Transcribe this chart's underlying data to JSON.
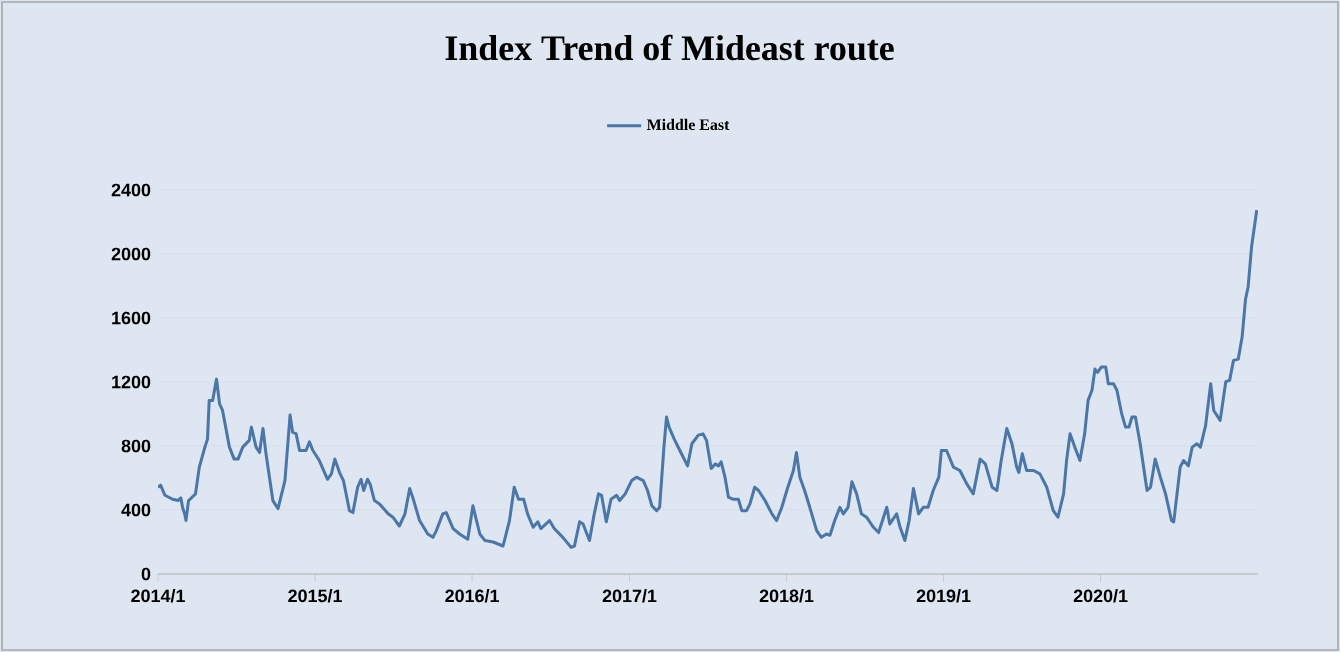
{
  "chart_data": {
    "type": "line",
    "title": "Index Trend of Mideast route",
    "xlim": [
      "2014-01-01",
      "2021-01-01"
    ],
    "xticks": [
      {
        "value": "2014-01-01",
        "label": "2014/1"
      },
      {
        "value": "2015-01-01",
        "label": "2015/1"
      },
      {
        "value": "2016-01-01",
        "label": "2016/1"
      },
      {
        "value": "2017-01-01",
        "label": "2017/1"
      },
      {
        "value": "2018-01-01",
        "label": "2018/1"
      },
      {
        "value": "2019-01-01",
        "label": "2019/1"
      },
      {
        "value": "2020-01-01",
        "label": "2020/1"
      }
    ],
    "ylim": [
      0,
      2400
    ],
    "yticks": [
      0,
      400,
      800,
      1200,
      1600,
      2000,
      2400
    ],
    "grid": "y",
    "legend": "top",
    "marker": "none",
    "line_style": "solid",
    "series": [
      {
        "name": "Middle East",
        "color": "#4a76a8",
        "x": [
          "2014-01-01",
          "2014-01-07",
          "2014-01-17",
          "2014-02-04",
          "2014-02-17",
          "2014-02-23",
          "2014-02-27",
          "2014-03-04",
          "2014-03-07",
          "2014-03-13",
          "2014-03-29",
          "2014-04-07",
          "2014-04-20",
          "2014-04-26",
          "2014-04-30",
          "2014-05-08",
          "2014-05-17",
          "2014-05-24",
          "2014-05-31",
          "2014-06-16",
          "2014-06-27",
          "2014-07-06",
          "2014-07-17",
          "2014-08-01",
          "2014-08-06",
          "2014-08-17",
          "2014-08-25",
          "2014-09-02",
          "2014-09-09",
          "2014-09-25",
          "2014-10-07",
          "2014-10-23",
          "2014-11-04",
          "2014-11-10",
          "2014-11-18",
          "2014-11-26",
          "2014-12-11",
          "2014-12-19",
          "2014-12-27",
          "2015-01-11",
          "2015-01-30",
          "2015-02-08",
          "2015-02-16",
          "2015-02-27",
          "2015-03-08",
          "2015-03-22",
          "2015-03-30",
          "2015-04-10",
          "2015-04-18",
          "2015-04-24",
          "2015-05-03",
          "2015-05-09",
          "2015-05-19",
          "2015-05-31",
          "2015-06-20",
          "2015-07-01",
          "2015-07-16",
          "2015-07-29",
          "2015-08-09",
          "2015-08-16",
          "2015-09-01",
          "2015-09-20",
          "2015-10-02",
          "2015-10-10",
          "2015-10-25",
          "2015-11-02",
          "2015-11-18",
          "2015-12-03",
          "2015-12-22",
          "2016-01-03",
          "2016-01-19",
          "2016-01-31",
          "2016-02-19",
          "2016-03-13",
          "2016-03-28",
          "2016-04-08",
          "2016-04-18",
          "2016-04-30",
          "2016-05-09",
          "2016-05-22",
          "2016-06-02",
          "2016-06-09",
          "2016-06-29",
          "2016-07-10",
          "2016-07-30",
          "2016-08-18",
          "2016-08-26",
          "2016-09-07",
          "2016-09-15",
          "2016-09-30",
          "2016-10-11",
          "2016-10-21",
          "2016-10-28",
          "2016-11-08",
          "2016-11-19",
          "2016-12-02",
          "2016-12-09",
          "2016-12-22",
          "2017-01-06",
          "2017-01-17",
          "2017-02-02",
          "2017-02-12",
          "2017-02-22",
          "2017-03-05",
          "2017-03-12",
          "2017-03-22",
          "2017-03-28",
          "2017-04-03",
          "2017-04-15",
          "2017-04-28",
          "2017-05-16",
          "2017-05-26",
          "2017-06-10",
          "2017-06-21",
          "2017-06-29",
          "2017-07-10",
          "2017-07-19",
          "2017-07-27",
          "2017-08-02",
          "2017-08-11",
          "2017-08-19",
          "2017-08-30",
          "2017-09-11",
          "2017-09-19",
          "2017-09-30",
          "2017-10-08",
          "2017-10-19",
          "2017-10-28",
          "2017-11-12",
          "2017-11-28",
          "2017-12-09",
          "2017-12-21",
          "2018-01-04",
          "2018-01-17",
          "2018-01-24",
          "2018-02-01",
          "2018-02-12",
          "2018-02-24",
          "2018-03-12",
          "2018-03-23",
          "2018-04-04",
          "2018-04-12",
          "2018-04-23",
          "2018-05-05",
          "2018-05-13",
          "2018-05-24",
          "2018-06-02",
          "2018-06-13",
          "2018-06-24",
          "2018-07-06",
          "2018-07-22",
          "2018-08-03",
          "2018-08-22",
          "2018-08-29",
          "2018-09-14",
          "2018-09-22",
          "2018-10-03",
          "2018-10-13",
          "2018-10-23",
          "2018-11-04",
          "2018-11-15",
          "2018-11-26",
          "2018-12-08",
          "2018-12-21",
          "2018-12-27",
          "2019-01-08",
          "2019-01-24",
          "2019-02-08",
          "2019-02-24",
          "2019-03-11",
          "2019-03-27",
          "2019-04-08",
          "2019-04-24",
          "2019-05-05",
          "2019-05-15",
          "2019-05-28",
          "2019-06-09",
          "2019-06-20",
          "2019-06-25",
          "2019-07-03",
          "2019-07-13",
          "2019-07-29",
          "2019-08-13",
          "2019-08-29",
          "2019-09-13",
          "2019-09-24",
          "2019-10-07",
          "2019-10-14",
          "2019-10-22",
          "2019-11-02",
          "2019-11-14",
          "2019-11-25",
          "2019-12-03",
          "2019-12-12",
          "2019-12-19",
          "2019-12-25",
          "2020-01-03",
          "2020-01-13",
          "2020-01-19",
          "2020-01-31",
          "2020-02-08",
          "2020-02-19",
          "2020-02-28",
          "2020-03-07",
          "2020-03-14",
          "2020-03-22",
          "2020-04-02",
          "2020-04-18",
          "2020-04-26",
          "2020-05-07",
          "2020-05-19",
          "2020-05-31",
          "2020-06-14",
          "2020-06-19",
          "2020-07-04",
          "2020-07-12",
          "2020-07-23",
          "2020-08-01",
          "2020-08-12",
          "2020-08-20",
          "2020-09-01",
          "2020-09-13",
          "2020-09-20",
          "2020-10-05",
          "2020-10-18",
          "2020-10-27",
          "2020-11-05",
          "2020-11-16",
          "2020-11-25",
          "2020-12-03",
          "2020-12-09",
          "2020-12-17",
          "2020-12-29"
        ],
        "values": [
          542,
          555,
          492,
          467,
          459,
          476,
          417,
          375,
          334,
          459,
          500,
          668,
          793,
          843,
          1085,
          1085,
          1218,
          1064,
          1022,
          793,
          718,
          718,
          793,
          835,
          918,
          793,
          759,
          910,
          751,
          459,
          409,
          584,
          993,
          885,
          877,
          772,
          772,
          826,
          772,
          709,
          592,
          626,
          718,
          634,
          584,
          396,
          384,
          542,
          592,
          522,
          592,
          563,
          459,
          438,
          376,
          355,
          300,
          376,
          534,
          480,
          334,
          250,
          229,
          271,
          376,
          384,
          284,
          250,
          217,
          426,
          250,
          209,
          200,
          175,
          334,
          542,
          467,
          467,
          376,
          292,
          326,
          284,
          334,
          284,
          229,
          167,
          175,
          326,
          313,
          209,
          376,
          501,
          492,
          326,
          467,
          492,
          459,
          501,
          584,
          605,
          584,
          522,
          426,
          396,
          417,
          793,
          981,
          918,
          843,
          772,
          676,
          814,
          868,
          876,
          835,
          659,
          688,
          676,
          701,
          605,
          480,
          467,
          467,
          396,
          396,
          438,
          542,
          522,
          459,
          376,
          334,
          417,
          542,
          647,
          759,
          605,
          522,
          417,
          271,
          229,
          250,
          242,
          334,
          417,
          376,
          417,
          576,
          501,
          376,
          355,
          292,
          259,
          417,
          313,
          376,
          292,
          209,
          334,
          534,
          376,
          417,
          417,
          522,
          605,
          772,
          772,
          668,
          647,
          563,
          501,
          718,
          688,
          542,
          522,
          709,
          910,
          814,
          668,
          634,
          751,
          647,
          647,
          626,
          542,
          396,
          355,
          501,
          709,
          876,
          793,
          709,
          876,
          1085,
          1148,
          1281,
          1260,
          1294,
          1294,
          1189,
          1189,
          1148,
          1002,
          918,
          918,
          981,
          981,
          814,
          522,
          542,
          718,
          605,
          501,
          334,
          325,
          668,
          709,
          676,
          793,
          814,
          793,
          926,
          1189,
          1022,
          960,
          1202,
          1210,
          1335,
          1343,
          1481,
          1719,
          1794,
          2045,
          2274
        ]
      }
    ]
  }
}
